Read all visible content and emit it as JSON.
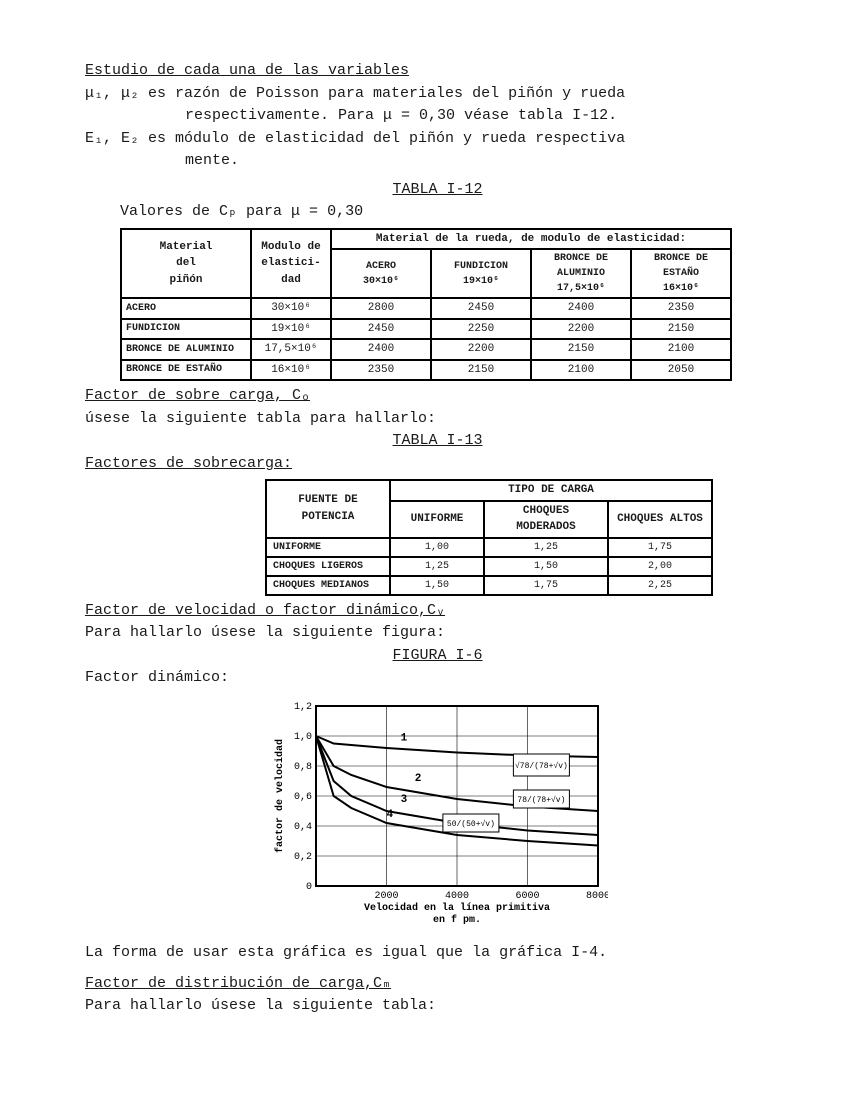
{
  "title": "Estudio de cada una de las variables",
  "mu_line1": "μ₁, μ₂ es razón de Poisson para materiales del piñón y rueda",
  "mu_line2": "respectivamente. Para μ = 0,30 véase tabla I-12.",
  "e_line1": "E₁, E₂ es módulo de elasticidad del piñón y rueda respectiva",
  "e_line2": "mente.",
  "tabla12_title": "TABLA I-12",
  "tabla12_sub": "Valores de Cₚ  para μ = 0,30",
  "t12": {
    "h_material": "Material\ndel\npiñón",
    "h_elast": "Modulo de\nelastici-\ndad",
    "h_rueda": "Material de la rueda, de modulo de elasticidad:",
    "sub": [
      "ACERO\n30×10⁶",
      "FUNDICION\n19×10⁶",
      "BRONCE DE\nALUMINIO\n17,5×10⁶",
      "BRONCE DE\nESTAÑO\n16×10⁶"
    ],
    "rows": [
      {
        "label": "ACERO",
        "e": "30×10⁶",
        "v": [
          "2800",
          "2450",
          "2400",
          "2350"
        ]
      },
      {
        "label": "FUNDICION",
        "e": "19×10⁶",
        "v": [
          "2450",
          "2250",
          "2200",
          "2150"
        ]
      },
      {
        "label": "BRONCE DE ALUMINIO",
        "e": "17,5×10⁶",
        "v": [
          "2400",
          "2200",
          "2150",
          "2100"
        ]
      },
      {
        "label": "BRONCE DE ESTAÑO",
        "e": "16×10⁶",
        "v": [
          "2350",
          "2150",
          "2100",
          "2050"
        ]
      }
    ]
  },
  "factor_co_title": "Factor de sobre carga, Cₒ",
  "factor_co_text": "úsese la siguiente tabla para hallarlo:",
  "tabla13_title": "TABLA I-13",
  "tabla13_sub": "Factores de sobrecarga:",
  "t13": {
    "h_fuente": "FUENTE DE\nPOTENCIA",
    "h_tipo": "TIPO DE CARGA",
    "sub": [
      "UNIFORME",
      "CHOQUES MODERADOS",
      "CHOQUES ALTOS"
    ],
    "rows": [
      {
        "label": "UNIFORME",
        "v": [
          "1,00",
          "1,25",
          "1,75"
        ]
      },
      {
        "label": "CHOQUES LIGEROS",
        "v": [
          "1,25",
          "1,50",
          "2,00"
        ]
      },
      {
        "label": "CHOQUES MEDIANOS",
        "v": [
          "1,50",
          "1,75",
          "2,25"
        ]
      }
    ]
  },
  "factor_cv_title": "Factor de velocidad o factor dinámico,Cᵥ",
  "factor_cv_text": "Para hallarlo úsese la siguiente figura:",
  "figura_title": "FIGURA I-6",
  "factor_din": "Factor dinámico:",
  "chart": {
    "ylabel": "factor de velocidad",
    "xlabel": "Velocidad en la línea primitiva\nen  f pm.",
    "y_ticks": [
      "0",
      "0,2",
      "0,4",
      "0,6",
      "0,8",
      "1,0",
      "1,2"
    ],
    "x_ticks": [
      "0",
      "2000",
      "4000",
      "6000",
      "8000"
    ],
    "formulas": [
      "√78/(78+√v)",
      "78/(78+√v)",
      "50/(50+√v)"
    ],
    "curve_labels": [
      "1",
      "2",
      "3",
      "4"
    ],
    "ylim": [
      0,
      1.2
    ],
    "xlim": [
      0,
      8000
    ],
    "curves": [
      {
        "id": 1,
        "pts": [
          [
            0,
            1.0
          ],
          [
            500,
            0.95
          ],
          [
            2000,
            0.92
          ],
          [
            4000,
            0.89
          ],
          [
            6000,
            0.87
          ],
          [
            8000,
            0.86
          ]
        ]
      },
      {
        "id": 2,
        "pts": [
          [
            0,
            1.0
          ],
          [
            500,
            0.8
          ],
          [
            1000,
            0.74
          ],
          [
            2000,
            0.66
          ],
          [
            4000,
            0.58
          ],
          [
            6000,
            0.53
          ],
          [
            8000,
            0.5
          ]
        ]
      },
      {
        "id": 3,
        "pts": [
          [
            0,
            1.0
          ],
          [
            500,
            0.7
          ],
          [
            1000,
            0.6
          ],
          [
            2000,
            0.5
          ],
          [
            4000,
            0.42
          ],
          [
            6000,
            0.37
          ],
          [
            8000,
            0.34
          ]
        ]
      },
      {
        "id": 4,
        "pts": [
          [
            0,
            1.0
          ],
          [
            500,
            0.6
          ],
          [
            1000,
            0.52
          ],
          [
            2000,
            0.42
          ],
          [
            4000,
            0.34
          ],
          [
            6000,
            0.3
          ],
          [
            8000,
            0.27
          ]
        ]
      }
    ],
    "line_color": "#000000",
    "grid_color": "#000000",
    "background_color": "#ffffff"
  },
  "forma_usar": "La forma de usar esta gráfica es igual que la gráfica I-4.",
  "factor_cm_title": "Factor de distribución de carga,Cₘ",
  "factor_cm_text": "Para hallarlo úsese la siguiente tabla:"
}
